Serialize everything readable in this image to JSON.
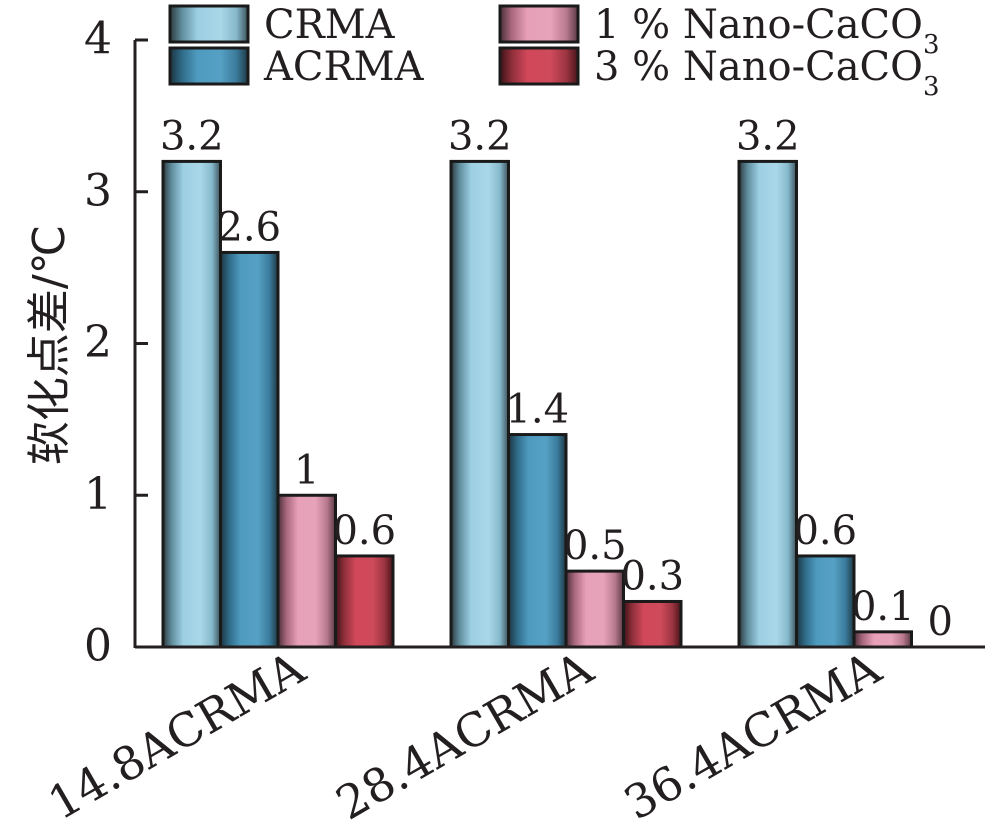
{
  "chart_data": {
    "type": "bar",
    "ylabel": "软化点差/℃",
    "xlabel": "",
    "ylim": [
      0,
      4
    ],
    "yticks": [
      0,
      1,
      2,
      3,
      4
    ],
    "categories": [
      "14.8ACRMA",
      "28.4ACRMA",
      "36.4ACRMA"
    ],
    "series": [
      {
        "name": "CRMA",
        "values": [
          3.2,
          3.2,
          3.2
        ],
        "color": "#8fc4d8"
      },
      {
        "name": "ACRMA",
        "values": [
          2.6,
          1.4,
          0.6
        ],
        "color": "#4f99bd"
      },
      {
        "name": "1 % Nano-CaCO3",
        "name_base": "1 % Nano-CaCO",
        "name_sub": "3",
        "values": [
          1,
          0.5,
          0.1
        ],
        "color": "#e096b0"
      },
      {
        "name": "3 % Nano-CaCO3",
        "name_base": "3 % Nano-CaCO",
        "name_sub": "3",
        "values": [
          0.6,
          0.3,
          0
        ],
        "color": "#c9404f"
      }
    ],
    "data_labels": [
      [
        "3.2",
        "2.6",
        "1",
        "0.6"
      ],
      [
        "3.2",
        "1.4",
        "0.5",
        "0.3"
      ],
      [
        "3.2",
        "0.6",
        "0.1",
        "0"
      ]
    ],
    "legend_position": "top",
    "grid": false
  }
}
